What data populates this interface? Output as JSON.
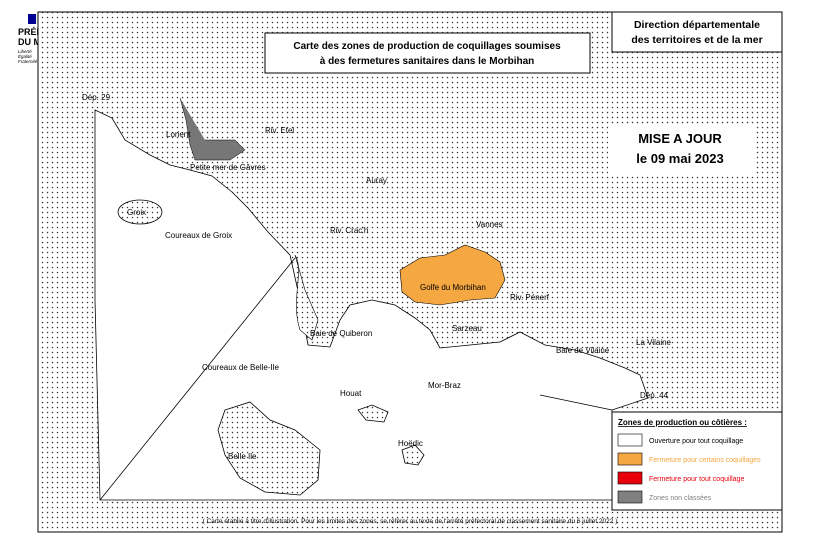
{
  "logo": {
    "name": [
      "PRÉFET",
      "DU MORBIHAN"
    ],
    "motto": [
      "Liberté",
      "Égalité",
      "Fraternité"
    ]
  },
  "header": {
    "agency": [
      "Direction départementale",
      "des territoires et de la mer"
    ]
  },
  "title": [
    "Carte des zones de production de coquillages soumises",
    "à des fermetures sanitaires dans le Morbihan"
  ],
  "update": [
    "MISE A JOUR",
    "le 09 mai 2023"
  ],
  "places": [
    "Dép. 29",
    "Lorient",
    "Riv. Etel",
    "Petite mer de Gâvres",
    "Auray",
    "Groix",
    "Coureaux de Groix",
    "Riv. Crac'h",
    "Vannes",
    "Golfe du Morbihan",
    "Riv. Pénerf",
    "Baie de Quiberon",
    "Sarzeau",
    "Baie de Vilaine",
    "La Vilaine",
    "Coureaux de Belle-Ile",
    "Mor-Braz",
    "Houat",
    "Dép. 44",
    "Hoëdic",
    "Belle Ile"
  ],
  "legend": {
    "title": "Zones de production ou côtières :",
    "items": [
      {
        "label": "Ouverture pour tout coquillage",
        "color": "#ffffff",
        "text_color": "#000000"
      },
      {
        "label": "Fermeture pour certains coquillages",
        "color": "#f5a742",
        "text_color": "#f5a742"
      },
      {
        "label": "Fermeture pour tout coquillage",
        "color": "#e8000b",
        "text_color": "#e8000b"
      },
      {
        "label": "Zones non classées",
        "color": "#808080",
        "text_color": "#808080"
      }
    ]
  },
  "footnote": "( Carte établie à titre d'illustration. Pour les limites des zones, se référer au texte de l'arrêté préfectoral de classement sanitaire du 6 juillet 2022 )"
}
